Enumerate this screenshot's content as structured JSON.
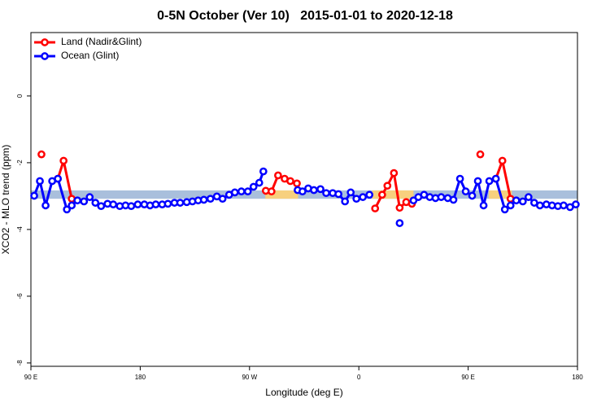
{
  "chart_data": {
    "type": "line",
    "title": "0-5N October (Ver 10)   2015-01-01 to 2020-12-18",
    "x_label": "Longitude (deg E)",
    "y_label": "XCO2 - MLO trend (ppm)",
    "xlim": [
      90,
      540
    ],
    "ylim": [
      -8.1,
      1.9
    ],
    "xticks": [
      {
        "value": 90,
        "label": "90 E"
      },
      180,
      {
        "value": 270,
        "label": "90 W"
      },
      {
        "value": 360,
        "label": "0"
      },
      {
        "value": 450,
        "label": "90 E"
      },
      {
        "value": 540,
        "label": "180"
      }
    ],
    "yticks": [
      -8,
      -6,
      -4,
      -2,
      0
    ],
    "legend": "top-left",
    "band": {
      "range": [
        -3.08,
        -2.83
      ],
      "segments": [
        {
          "xlim": [
            90,
            540
          ],
          "color": "#a9bfdc"
        },
        {
          "xlim": [
            283,
            310
          ],
          "color": "#f7d07e"
        },
        {
          "xlim": [
            371,
            405
          ],
          "color": "#f7d07e"
        },
        {
          "xlim": [
            467,
            486
          ],
          "color": "#f7d07e"
        }
      ]
    },
    "series": [
      {
        "name": "Land (Nadir&Glint)",
        "color": "#ff0000",
        "x": [
          98.7,
          null,
          112.2,
          116.9,
          123.6,
          null,
          283.4,
          288.1,
          293.5,
          298.9,
          303.6,
          309.0,
          null,
          373.4,
          379.2,
          383.5,
          388.9,
          393.6,
          399.0,
          403.7,
          null,
          460.0,
          null,
          472.8,
          478.2,
          484.9
        ],
        "values": [
          -1.75,
          null,
          -2.48,
          -1.94,
          -3.08,
          null,
          -2.84,
          -2.86,
          -2.38,
          -2.48,
          -2.55,
          -2.62,
          null,
          -3.37,
          -2.96,
          -2.69,
          -2.31,
          -3.35,
          -3.18,
          -3.23,
          null,
          -1.75,
          null,
          -2.48,
          -1.94,
          -3.08
        ]
      },
      {
        "name": "Ocean (Glint)",
        "color": "#0000ff",
        "x": [
          92.7,
          97.4,
          102.1,
          107.5,
          112.2,
          119.6,
          123.6,
          128.3,
          133.7,
          138.4,
          143.1,
          147.8,
          153.1,
          157.8,
          163.2,
          167.9,
          172.6,
          178.0,
          183.4,
          188.1,
          192.8,
          198.1,
          202.8,
          208.2,
          212.9,
          218.3,
          223.0,
          227.7,
          232.4,
          237.8,
          243.1,
          247.8,
          253.2,
          257.9,
          263.3,
          268.6,
          273.3,
          278.0,
          281.4,
          null,
          309.6,
          313.6,
          318.3,
          323.0,
          328.4,
          333.1,
          338.5,
          343.2,
          348.6,
          353.3,
          358.0,
          363.3,
          368.7,
          null,
          393.6,
          null,
          405.0,
          409.0,
          413.7,
          418.4,
          423.1,
          427.8,
          433.2,
          437.9,
          443.3,
          448.0,
          453.3,
          458.0,
          462.7,
          467.4,
          472.8,
          480.2,
          484.9,
          489.6,
          495.0,
          499.7,
          504.4,
          509.1,
          514.4,
          519.1,
          523.9,
          528.6,
          533.9,
          538.6
        ],
        "values": [
          -2.99,
          -2.55,
          -3.28,
          -2.55,
          -2.48,
          -3.4,
          -3.28,
          -3.13,
          -3.16,
          -3.03,
          -3.2,
          -3.3,
          -3.23,
          -3.25,
          -3.3,
          -3.28,
          -3.3,
          -3.25,
          -3.25,
          -3.28,
          -3.25,
          -3.25,
          -3.23,
          -3.2,
          -3.2,
          -3.18,
          -3.16,
          -3.13,
          -3.11,
          -3.08,
          -3.01,
          -3.08,
          -2.96,
          -2.89,
          -2.86,
          -2.86,
          -2.72,
          -2.6,
          -2.26,
          null,
          -2.82,
          -2.86,
          -2.77,
          -2.82,
          -2.79,
          -2.91,
          -2.91,
          -2.94,
          -3.16,
          -2.89,
          -3.08,
          -3.03,
          -2.96,
          null,
          -3.81,
          null,
          -3.13,
          -3.03,
          -2.96,
          -3.03,
          -3.06,
          -3.03,
          -3.06,
          -3.11,
          -2.48,
          -2.86,
          -2.99,
          -2.55,
          -3.28,
          -2.55,
          -2.48,
          -3.4,
          -3.28,
          -3.13,
          -3.16,
          -3.03,
          -3.2,
          -3.28,
          -3.25,
          -3.28,
          -3.3,
          -3.28,
          -3.33,
          -3.25
        ]
      }
    ]
  }
}
